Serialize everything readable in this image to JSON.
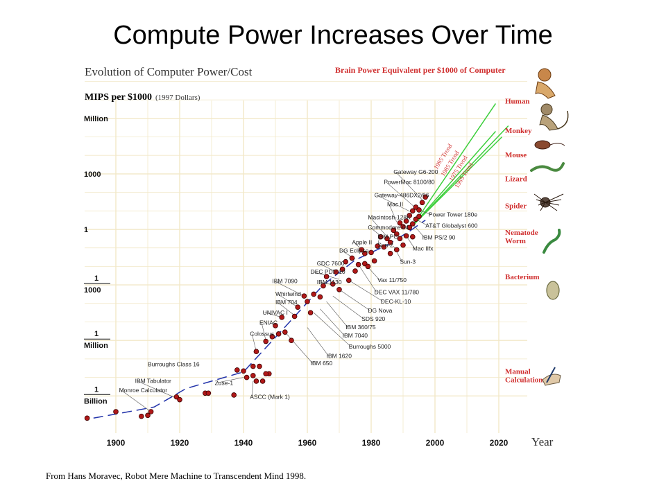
{
  "slide": {
    "title": "Compute Power Increases Over Time",
    "source": "From Hans Moravec, Robot Mere Machine to Transcendent Mind 1998."
  },
  "chart_data": {
    "type": "scatter",
    "title": "Evolution of Computer Power/Cost",
    "ylabel": "MIPS per $1000",
    "ylabel_note": "(1997 Dollars)",
    "xlabel": "Year",
    "xlim": [
      1890,
      2030
    ],
    "ylim_log10": [
      -9.5,
      9.2
    ],
    "grid": true,
    "x_ticks": [
      "1900",
      "1920",
      "1940",
      "1960",
      "1980",
      "2000",
      "2020"
    ],
    "y_ticks": [
      {
        "value_log10": 6,
        "label": "Million"
      },
      {
        "value_log10": 3,
        "label": "1000"
      },
      {
        "value_log10": 0,
        "label": "1"
      },
      {
        "value_log10": -3,
        "num": "1",
        "den": "1000"
      },
      {
        "value_log10": -6,
        "num": "1",
        "den": "Million"
      },
      {
        "value_log10": -9,
        "num": "1",
        "den": "Billion"
      }
    ],
    "brain_header": "Brain Power Equivalent per $1000 of Computer",
    "brain_levels": [
      {
        "label": "Human",
        "label2": "",
        "y": 6.8
      },
      {
        "label": "Monkey",
        "label2": "",
        "y": 5.2
      },
      {
        "label": "Mouse",
        "label2": "",
        "y": 3.9
      },
      {
        "label": "Lizard",
        "label2": "",
        "y": 2.6
      },
      {
        "label": "Spider",
        "label2": "",
        "y": 1.15
      },
      {
        "label": "Nematode",
        "label2": "Worm",
        "y": -0.3
      },
      {
        "label": "Bacterium",
        "label2": "",
        "y": -2.7
      },
      {
        "label": "Manual",
        "label2": "Calculation",
        "y": -7.8
      }
    ],
    "trend_labels": [
      "1995 Trend",
      "1985 Trend",
      "1975 Trend",
      "1965 Trend"
    ],
    "trends": [
      {
        "name": "1995 Trend",
        "from": [
          1993,
          0.2
        ],
        "to": [
          2019,
          6.8
        ]
      },
      {
        "name": "1985 Trend",
        "from": [
          1993,
          0.2
        ],
        "to": [
          2023,
          5.6
        ]
      },
      {
        "name": "1975 Trend",
        "from": [
          1993,
          0.2
        ],
        "to": [
          2021,
          5.0
        ]
      },
      {
        "name": "1965 Trend",
        "from": [
          1993,
          0.2
        ],
        "to": [
          2019,
          5.3
        ]
      }
    ],
    "fit_curve": [
      [
        1893,
        -10.2
      ],
      [
        1912,
        -9.6
      ],
      [
        1922,
        -8.6
      ],
      [
        1940,
        -7.7
      ],
      [
        1955,
        -4.9
      ],
      [
        1965,
        -3.0
      ],
      [
        1975,
        -1.65
      ],
      [
        1985,
        -0.85
      ],
      [
        1992,
        -0.1
      ],
      [
        1997,
        0.5
      ]
    ],
    "points": [
      [
        1891,
        -10.2
      ],
      [
        1900,
        -9.85
      ],
      [
        1908,
        -10.1
      ],
      [
        1910,
        -10.05
      ],
      [
        1911,
        -9.85
      ],
      [
        1919,
        -9.05
      ],
      [
        1920,
        -9.2
      ],
      [
        1928,
        -8.85
      ],
      [
        1929,
        -8.85
      ],
      [
        1937,
        -8.95
      ],
      [
        1938,
        -7.6
      ],
      [
        1940,
        -7.65
      ],
      [
        1943,
        -7.4
      ],
      [
        1943,
        -7.9
      ],
      [
        1944,
        -8.2
      ],
      [
        1945,
        -7.4
      ],
      [
        1946,
        -8.2
      ],
      [
        1948,
        -7.8
      ],
      [
        1947,
        -7.8
      ],
      [
        1941,
        -8.0
      ],
      [
        1944,
        -6.6
      ],
      [
        1947,
        -6.05
      ],
      [
        1949,
        -5.8
      ],
      [
        1950,
        -5.2
      ],
      [
        1951,
        -5.65
      ],
      [
        1952,
        -4.75
      ],
      [
        1953,
        -5.55
      ],
      [
        1955,
        -6.0
      ],
      [
        1956,
        -4.7
      ],
      [
        1957,
        -4.2
      ],
      [
        1959,
        -3.6
      ],
      [
        1960,
        -3.9
      ],
      [
        1961,
        -4.5
      ],
      [
        1962,
        -3.5
      ],
      [
        1964,
        -3.65
      ],
      [
        1965,
        -3.05
      ],
      [
        1966,
        -2.55
      ],
      [
        1968,
        -2.95
      ],
      [
        1969,
        -2.3
      ],
      [
        1970,
        -3.25
      ],
      [
        1971,
        -2.15
      ],
      [
        1972,
        -1.75
      ],
      [
        1973,
        -2.75
      ],
      [
        1974,
        -1.55
      ],
      [
        1975,
        -2.25
      ],
      [
        1976,
        -1.9
      ],
      [
        1977,
        -1.1
      ],
      [
        1978,
        -1.3
      ],
      [
        1978,
        -1.85
      ],
      [
        1979,
        -2.0
      ],
      [
        1980,
        -1.25
      ],
      [
        1981,
        -1.7
      ],
      [
        1982,
        -0.9
      ],
      [
        1983,
        -0.4
      ],
      [
        1984,
        -0.95
      ],
      [
        1985,
        -0.5
      ],
      [
        1986,
        -0.7
      ],
      [
        1986,
        -1.3
      ],
      [
        1987,
        -0.05
      ],
      [
        1988,
        -0.25
      ],
      [
        1988,
        -1.1
      ],
      [
        1989,
        0.35
      ],
      [
        1989,
        -0.5
      ],
      [
        1990,
        0.15
      ],
      [
        1990,
        -0.85
      ],
      [
        1991,
        0.45
      ],
      [
        1991,
        -0.35
      ],
      [
        1992,
        0.75
      ],
      [
        1992,
        0.1
      ],
      [
        1993,
        1.0
      ],
      [
        1993,
        0.3
      ],
      [
        1993,
        -0.4
      ],
      [
        1994,
        1.2
      ],
      [
        1994,
        0.55
      ],
      [
        1995,
        1.05
      ],
      [
        1995,
        0.7
      ],
      [
        1996,
        1.45
      ],
      [
        1997,
        1.75
      ]
    ],
    "labels": [
      {
        "text": "Gateway G6-200",
        "x": 1987,
        "y": 3.0,
        "to": [
          1996,
          1.6
        ],
        "anchor": "start"
      },
      {
        "text": "PowerMac 8100/80",
        "x": 1984,
        "y": 2.45,
        "to": [
          1994,
          1.15
        ],
        "anchor": "start"
      },
      {
        "text": "Gateway-486DX2/66",
        "x": 1981,
        "y": 1.75,
        "to": [
          1993,
          0.9
        ],
        "anchor": "start"
      },
      {
        "text": "Mac II",
        "x": 1985,
        "y": 1.25,
        "to": [
          1988,
          0.4
        ],
        "anchor": "start"
      },
      {
        "text": "Macintosh-128K",
        "x": 1979,
        "y": 0.55,
        "to": [
          1985,
          -0.4
        ],
        "anchor": "start"
      },
      {
        "text": "Commodore 64",
        "x": 1979,
        "y": 0.0,
        "to": [
          1983,
          -0.35
        ],
        "anchor": "start"
      },
      {
        "text": "IBM PC",
        "x": 1982,
        "y": -0.5,
        "to": [
          1982,
          -0.9
        ],
        "anchor": "start"
      },
      {
        "text": "Sun-2",
        "x": 1982,
        "y": -0.95,
        "to": [
          1984,
          -1.0
        ],
        "anchor": "start"
      },
      {
        "text": "Apple II",
        "x": 1974,
        "y": -0.8,
        "to": [
          1977,
          -1.1
        ],
        "anchor": "start"
      },
      {
        "text": "DG Eclipse",
        "x": 1970,
        "y": -1.25,
        "to": [
          1975,
          -1.6
        ],
        "anchor": "start"
      },
      {
        "text": "CDC 7600",
        "x": 1963,
        "y": -1.95,
        "to": [
          1969,
          -2.3
        ],
        "anchor": "start"
      },
      {
        "text": "DEC PDP-10",
        "x": 1961,
        "y": -2.4,
        "to": [
          1970,
          -2.7
        ],
        "anchor": "start"
      },
      {
        "text": "IBM 7090",
        "x": 1949,
        "y": -2.9,
        "to": [
          1959,
          -3.6
        ],
        "anchor": "start"
      },
      {
        "text": "IBM 1130",
        "x": 1963,
        "y": -2.95,
        "to": [
          1968,
          -3.0
        ],
        "anchor": "start"
      },
      {
        "text": "Whirlwind",
        "x": 1950,
        "y": -3.6,
        "to": [
          1957,
          -4.2
        ],
        "anchor": "start"
      },
      {
        "text": "IBM 704",
        "x": 1950,
        "y": -4.05,
        "to": [
          1956,
          -4.65
        ],
        "anchor": "start"
      },
      {
        "text": "UNIVAC I",
        "x": 1946,
        "y": -4.6,
        "to": [
          1952,
          -4.75
        ],
        "anchor": "start"
      },
      {
        "text": "ENIAC",
        "x": 1945,
        "y": -5.15,
        "to": [
          1947,
          -6.0
        ],
        "anchor": "start"
      },
      {
        "text": "Colossus",
        "x": 1942,
        "y": -5.75,
        "to": [
          1944,
          -6.6
        ],
        "anchor": "start"
      },
      {
        "text": "Burroughs Class 16",
        "x": 1910,
        "y": -7.4,
        "to": null,
        "anchor": "start"
      },
      {
        "text": "IBM Tabulator",
        "x": 1906,
        "y": -8.3,
        "to": [
          1920,
          -9.2
        ],
        "anchor": "start"
      },
      {
        "text": "Monroe Calculator",
        "x": 1901,
        "y": -8.8,
        "to": [
          1911,
          -9.85
        ],
        "anchor": "start"
      },
      {
        "text": "Zuse-1",
        "x": 1931,
        "y": -8.4,
        "to": [
          1940,
          -8.0
        ],
        "anchor": "start"
      },
      {
        "text": "ASCC (Mark 1)",
        "x": 1942,
        "y": -9.15,
        "to": [
          1943,
          -8.2
        ],
        "anchor": "start"
      },
      {
        "text": "Power Tower 180e",
        "x": 1998,
        "y": 0.7,
        "to": [
          1995,
          1.05
        ],
        "anchor": "start"
      },
      {
        "text": "AT&T Globalyst 600",
        "x": 1997,
        "y": 0.1,
        "to": [
          1994,
          0.55
        ],
        "anchor": "start"
      },
      {
        "text": "IBM PS/2 90",
        "x": 1996,
        "y": -0.55,
        "to": [
          1993,
          0.3
        ],
        "anchor": "start"
      },
      {
        "text": "Mac IIfx",
        "x": 1993,
        "y": -1.15,
        "to": [
          1991,
          -0.35
        ],
        "anchor": "start"
      },
      {
        "text": "Sun-3",
        "x": 1989,
        "y": -1.85,
        "to": [
          1987,
          -0.9
        ],
        "anchor": "start"
      },
      {
        "text": "Vax 11/750",
        "x": 1982,
        "y": -2.85,
        "to": [
          1978,
          -1.85
        ],
        "anchor": "start"
      },
      {
        "text": "DEC VAX 11/780",
        "x": 1981,
        "y": -3.5,
        "to": [
          1976,
          -1.9
        ],
        "anchor": "start"
      },
      {
        "text": "DEC-KL-10",
        "x": 1983,
        "y": -4.0,
        "to": [
          1973,
          -2.75
        ],
        "anchor": "start"
      },
      {
        "text": "DG Nova",
        "x": 1979,
        "y": -4.5,
        "to": [
          1970,
          -3.25
        ],
        "anchor": "start"
      },
      {
        "text": "SDS 920",
        "x": 1977,
        "y": -4.95,
        "to": [
          1968,
          -3.6
        ],
        "anchor": "start"
      },
      {
        "text": "IBM 360/75",
        "x": 1972,
        "y": -5.4,
        "to": [
          1966,
          -3.9
        ],
        "anchor": "start"
      },
      {
        "text": "IBM 7040",
        "x": 1971,
        "y": -5.85,
        "to": [
          1964,
          -4.3
        ],
        "anchor": "start"
      },
      {
        "text": "Burroughs 5000",
        "x": 1973,
        "y": -6.45,
        "to": [
          1962,
          -4.5
        ],
        "anchor": "start"
      },
      {
        "text": "IBM 1620",
        "x": 1966,
        "y": -6.95,
        "to": [
          1960,
          -5.3
        ],
        "anchor": "start"
      },
      {
        "text": "IBM 650",
        "x": 1961,
        "y": -7.35,
        "to": [
          1953,
          -5.55
        ],
        "anchor": "start"
      }
    ]
  }
}
